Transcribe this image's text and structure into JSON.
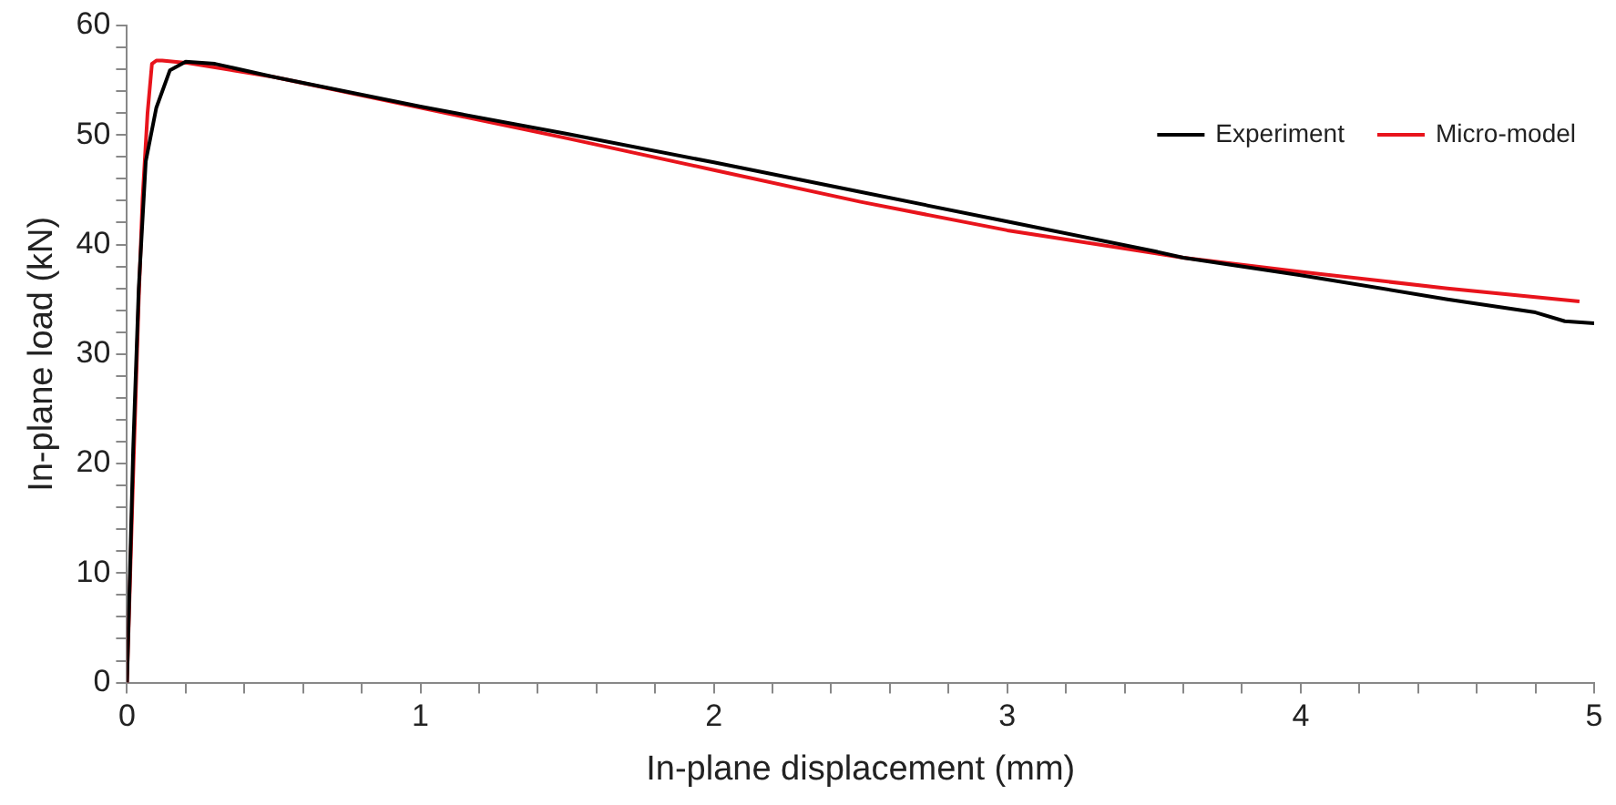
{
  "chart_data": {
    "type": "line",
    "xlabel": "In-plane displacement (mm)",
    "ylabel": "In-plane load (kN)",
    "xlim": [
      0,
      5
    ],
    "ylim": [
      0,
      60
    ],
    "xticks": [
      0,
      {
        "value": 0.2,
        "label": null
      },
      {
        "value": 0.4,
        "label": null
      },
      {
        "value": 0.6,
        "label": null
      },
      {
        "value": 0.8,
        "label": null
      },
      1,
      {
        "value": 1.2,
        "label": null
      },
      {
        "value": 1.4,
        "label": null
      },
      {
        "value": 1.6,
        "label": null
      },
      {
        "value": 1.8,
        "label": null
      },
      2,
      {
        "value": 2.2,
        "label": null
      },
      {
        "value": 2.4,
        "label": null
      },
      {
        "value": 2.6,
        "label": null
      },
      {
        "value": 2.8,
        "label": null
      },
      3,
      {
        "value": 3.2,
        "label": null
      },
      {
        "value": 3.4,
        "label": null
      },
      {
        "value": 3.6,
        "label": null
      },
      {
        "value": 3.8,
        "label": null
      },
      4,
      {
        "value": 4.2,
        "label": null
      },
      {
        "value": 4.4,
        "label": null
      },
      {
        "value": 4.6,
        "label": null
      },
      {
        "value": 4.8,
        "label": null
      },
      5
    ],
    "yticks": [
      0,
      {
        "value": 2,
        "label": null
      },
      {
        "value": 4,
        "label": null
      },
      {
        "value": 6,
        "label": null
      },
      {
        "value": 8,
        "label": null
      },
      10,
      {
        "value": 12,
        "label": null
      },
      {
        "value": 14,
        "label": null
      },
      {
        "value": 16,
        "label": null
      },
      {
        "value": 18,
        "label": null
      },
      20,
      {
        "value": 22,
        "label": null
      },
      {
        "value": 24,
        "label": null
      },
      {
        "value": 26,
        "label": null
      },
      {
        "value": 28,
        "label": null
      },
      30,
      {
        "value": 32,
        "label": null
      },
      {
        "value": 34,
        "label": null
      },
      {
        "value": 36,
        "label": null
      },
      {
        "value": 38,
        "label": null
      },
      40,
      {
        "value": 42,
        "label": null
      },
      {
        "value": 44,
        "label": null
      },
      {
        "value": 46,
        "label": null
      },
      {
        "value": 48,
        "label": null
      },
      50,
      {
        "value": 52,
        "label": null
      },
      {
        "value": 54,
        "label": null
      },
      {
        "value": 56,
        "label": null
      },
      {
        "value": 58,
        "label": null
      },
      60
    ],
    "grid": false,
    "legend": "top right",
    "marker": "none",
    "line_style": "solid",
    "series": [
      {
        "name": "Experiment",
        "color": "#000000",
        "x": [
          0,
          0.01,
          0.021,
          0.04,
          0.064,
          0.1,
          0.146,
          0.2,
          0.3,
          0.5,
          1,
          1.5,
          2,
          2.5,
          3,
          3.5,
          3.6,
          4,
          4.5,
          4.8,
          4.9,
          5
        ],
        "values": [
          0,
          10,
          21.3,
          36,
          47.6,
          52.5,
          55.9,
          56.7,
          56.5,
          55.3,
          52.6,
          50.1,
          47.5,
          44.8,
          42.1,
          39.4,
          38.8,
          37.2,
          35,
          33.8,
          33,
          32.8
        ]
      },
      {
        "name": "Micro-model",
        "color": "#e8141c",
        "x": [
          0,
          0.02,
          0.04,
          0.053,
          0.07,
          0.085,
          0.1,
          0.12,
          0.2,
          0.5,
          1,
          1.5,
          2,
          2.5,
          3,
          3.6,
          4,
          4.5,
          4.95
        ],
        "values": [
          0,
          18,
          35,
          44.2,
          52,
          56.5,
          56.8,
          56.8,
          56.6,
          55.3,
          52.5,
          49.7,
          46.8,
          43.9,
          41.3,
          38.8,
          37.5,
          36,
          34.8
        ]
      }
    ]
  }
}
